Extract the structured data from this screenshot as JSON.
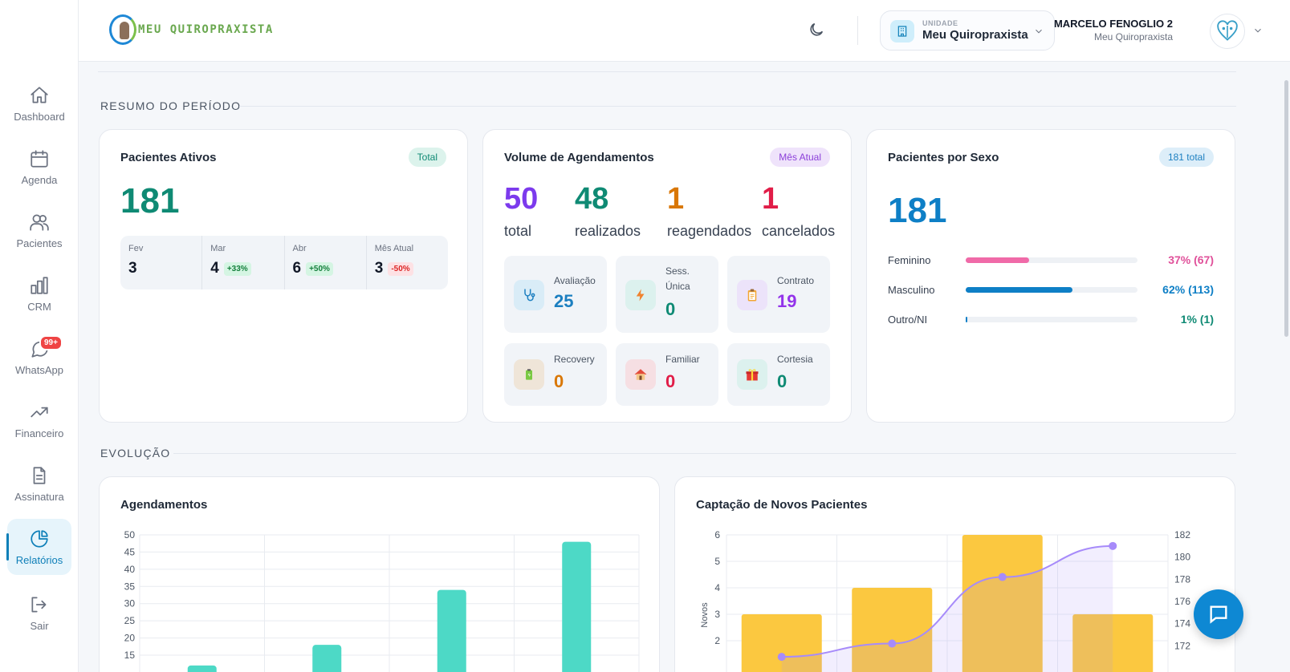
{
  "header": {
    "logo_text": "MEU QUIROPRAXISTA",
    "unit_label": "UNIDADE",
    "unit_name": "Meu Quiropraxista",
    "user_name": "MARCELO FENOGLIO 2",
    "user_sub": "Meu Quiropraxista"
  },
  "sidebar": {
    "items": [
      {
        "label": "Dashboard",
        "icon": "home-icon"
      },
      {
        "label": "Agenda",
        "icon": "calendar-icon"
      },
      {
        "label": "Pacientes",
        "icon": "users-icon"
      },
      {
        "label": "CRM",
        "icon": "bar-chart-icon"
      },
      {
        "label": "WhatsApp",
        "icon": "chat-icon",
        "badge": "99+"
      },
      {
        "label": "Financeiro",
        "icon": "trending-up-icon"
      },
      {
        "label": "Assinatura",
        "icon": "document-icon"
      },
      {
        "label": "Relatórios",
        "icon": "pie-chart-icon",
        "active": true
      },
      {
        "label": "Sair",
        "icon": "logout-icon"
      }
    ]
  },
  "sections": {
    "resumo": "RESUMO DO PERÍODO",
    "evolucao": "EVOLUÇÃO"
  },
  "pacientes_ativos": {
    "title": "Pacientes Ativos",
    "pill": "Total",
    "total": "181",
    "months": [
      {
        "label": "Fev",
        "value": "3",
        "delta": ""
      },
      {
        "label": "Mar",
        "value": "4",
        "delta": "+33%"
      },
      {
        "label": "Abr",
        "value": "6",
        "delta": "+50%"
      },
      {
        "label": "Mês Atual",
        "value": "3",
        "delta": "-50%"
      }
    ]
  },
  "volume": {
    "title": "Volume de Agendamentos",
    "pill": "Mês Atual",
    "stats": [
      {
        "value": "50",
        "label": "total"
      },
      {
        "value": "48",
        "label": "realizados"
      },
      {
        "value": "1",
        "label": "reagendados"
      },
      {
        "value": "1",
        "label": "cancelados"
      }
    ],
    "tiles": [
      {
        "label": "Avaliação",
        "value": "25"
      },
      {
        "label": "Sess. Única",
        "value": "0"
      },
      {
        "label": "Contrato",
        "value": "19"
      },
      {
        "label": "Recovery",
        "value": "0"
      },
      {
        "label": "Familiar",
        "value": "0"
      },
      {
        "label": "Cortesia",
        "value": "0"
      }
    ]
  },
  "sexo": {
    "title": "Pacientes por Sexo",
    "pill": "181 total",
    "total": "181",
    "rows": [
      {
        "label": "Feminino",
        "value": "37% (67)",
        "fraction": 0.37,
        "color": "#f06aa8"
      },
      {
        "label": "Masculino",
        "value": "62% (113)",
        "fraction": 0.62,
        "color": "#0e7fc6"
      },
      {
        "label": "Outro/NI",
        "value": "1% (1)",
        "fraction": 0.01,
        "color": "#0e7fc6"
      }
    ]
  },
  "chart_data": [
    {
      "type": "bar",
      "title": "Agendamentos",
      "values": [
        12,
        18,
        34,
        48
      ],
      "ylim": [
        10,
        50
      ],
      "yticks": [
        15,
        20,
        25,
        30,
        35,
        40,
        45,
        50
      ],
      "color": "#4dd9c6"
    },
    {
      "type": "bar+line",
      "title": "Captação de Novos Pacientes",
      "ylabel": "Novos",
      "bar_values": [
        3,
        4,
        6,
        3
      ],
      "line_values": [
        171,
        172.2,
        178.2,
        181
      ],
      "ylim_left": [
        1.7,
        6
      ],
      "ylim_right": [
        171.2,
        182
      ],
      "yticks_left": [
        2,
        3,
        4,
        5,
        6
      ],
      "yticks_right": [
        172,
        174,
        176,
        178,
        180,
        182
      ],
      "bar_color": "#fbc840",
      "line_color": "#a78bfa"
    }
  ]
}
